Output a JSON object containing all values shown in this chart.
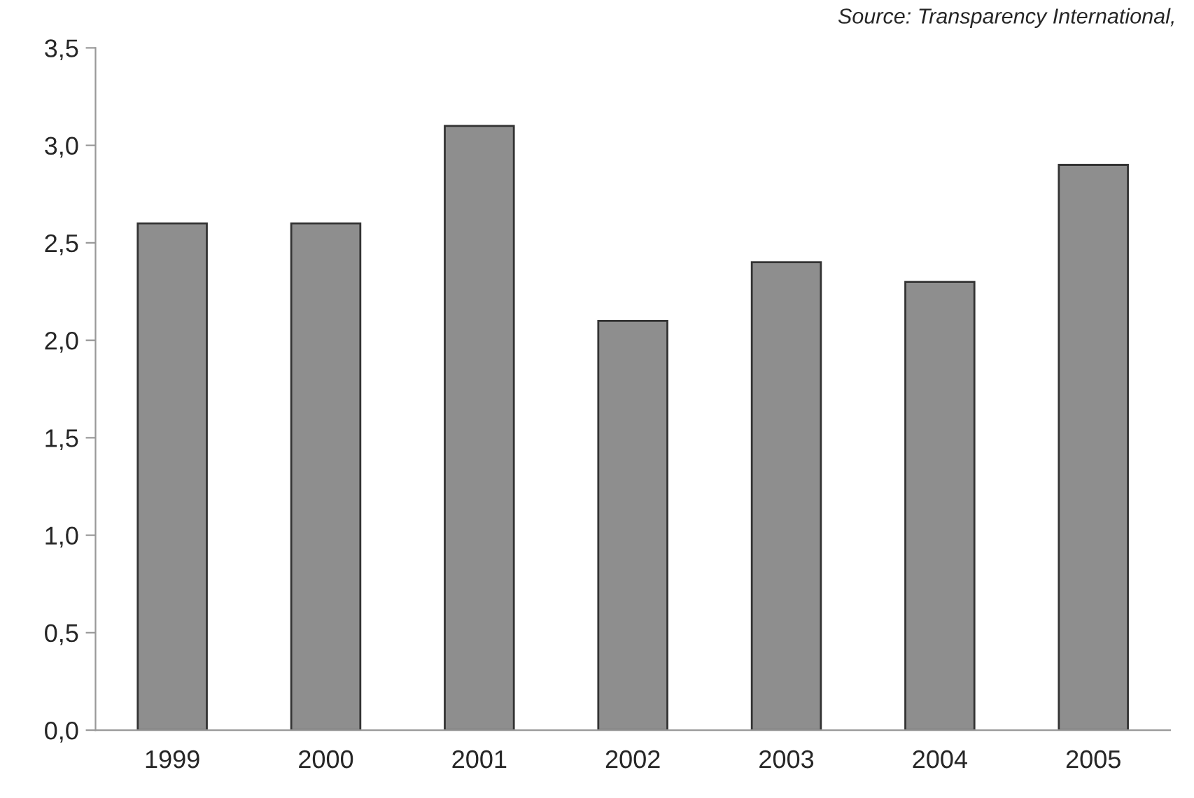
{
  "chart_data": {
    "type": "bar",
    "categories": [
      "1999",
      "2000",
      "2001",
      "2002",
      "2003",
      "2004",
      "2005"
    ],
    "values": [
      2.6,
      2.6,
      3.1,
      2.1,
      2.4,
      2.3,
      2.9
    ],
    "color": "#8e8e8e",
    "ylim": [
      0,
      3.5
    ],
    "yticks": [
      {
        "value": 0,
        "label": "0,0"
      },
      {
        "value": 0.5,
        "label": "0,5"
      },
      {
        "value": 1,
        "label": "1,0"
      },
      {
        "value": 1.5,
        "label": "1,5"
      },
      {
        "value": 2,
        "label": "2,0"
      },
      {
        "value": 2.5,
        "label": "2,5"
      },
      {
        "value": 3,
        "label": "3,0"
      },
      {
        "value": 3.5,
        "label": "3,5"
      }
    ],
    "grid": false,
    "annotations": [
      "Source: Transparency International,"
    ]
  }
}
